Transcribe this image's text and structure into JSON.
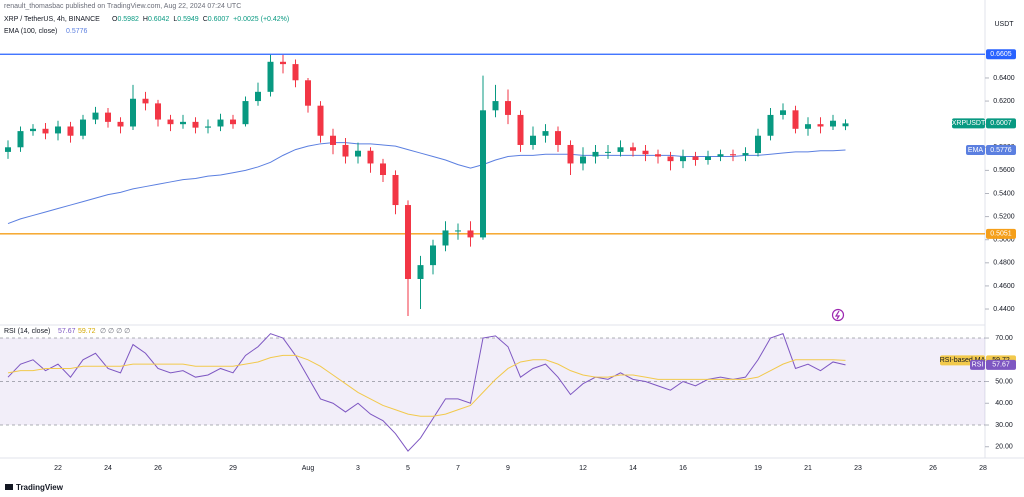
{
  "header": "renault_thomasbac published on TradingView.com, Aug 22, 2024 07:24 UTC",
  "currency": "USDT",
  "brand": "TradingView",
  "chart_data": [
    {
      "type": "candlestick",
      "title": "XRP / TetherUS, 4h, BINANCE",
      "symbol": "XRPUSDT",
      "ohlc_letters": [
        "O",
        "H",
        "L",
        "C"
      ],
      "change": "+0.0025 (+0.42%)",
      "up_color": "#089981",
      "down_color": "#f23645",
      "categories": [
        null,
        null,
        null,
        null,
        "22",
        null,
        null,
        null,
        "24",
        null,
        null,
        null,
        "26",
        null,
        null,
        null,
        null,
        null,
        "29",
        null,
        null,
        null,
        null,
        null,
        "Aug",
        null,
        null,
        null,
        "3",
        null,
        null,
        null,
        "5",
        null,
        null,
        null,
        "7",
        null,
        null,
        null,
        "9",
        null,
        null,
        null,
        null,
        null,
        "12",
        null,
        null,
        null,
        "14",
        null,
        null,
        null,
        "16",
        null,
        null,
        null,
        null,
        null,
        "19",
        null,
        null,
        null,
        "21",
        null,
        null,
        null,
        "23",
        null,
        null,
        null,
        null,
        null,
        "26",
        null,
        null,
        null,
        "28"
      ],
      "open": [
        0.576,
        0.58,
        0.594,
        0.596,
        0.592,
        0.598,
        0.59,
        0.604,
        0.61,
        0.602,
        0.598,
        0.622,
        0.618,
        0.604,
        0.6,
        0.602,
        0.597,
        0.598,
        0.604,
        0.6,
        0.62,
        0.628,
        0.654,
        0.652,
        0.638,
        0.616,
        0.59,
        0.582,
        0.572,
        0.577,
        0.566,
        0.556,
        0.53,
        0.466,
        0.478,
        0.495,
        0.508,
        0.508,
        0.502,
        0.612,
        0.62,
        0.608,
        0.582,
        0.59,
        0.594,
        0.582,
        0.566,
        0.572,
        0.576,
        0.576,
        0.58,
        0.577,
        0.574,
        0.572,
        0.568,
        0.572,
        0.569,
        0.572,
        0.574,
        0.573,
        0.575,
        0.59,
        0.608,
        0.612,
        0.596,
        0.6,
        0.598,
        0.5982,
        null,
        null,
        null,
        null,
        null,
        null,
        null,
        null,
        null,
        null,
        null
      ],
      "high": [
        0.586,
        0.598,
        0.6,
        0.601,
        0.603,
        0.602,
        0.608,
        0.615,
        0.614,
        0.606,
        0.634,
        0.628,
        0.621,
        0.608,
        0.608,
        0.606,
        0.604,
        0.609,
        0.608,
        0.624,
        0.636,
        0.66,
        0.66,
        0.656,
        0.64,
        0.62,
        0.596,
        0.588,
        0.584,
        0.58,
        0.57,
        0.56,
        0.534,
        0.486,
        0.5,
        0.516,
        0.514,
        0.516,
        0.642,
        0.634,
        0.63,
        0.612,
        0.598,
        0.6,
        0.598,
        0.586,
        0.58,
        0.582,
        0.582,
        0.586,
        0.584,
        0.582,
        0.578,
        0.576,
        0.578,
        0.576,
        0.577,
        0.578,
        0.578,
        0.58,
        0.596,
        0.614,
        0.618,
        0.616,
        0.606,
        0.606,
        0.608,
        0.6042,
        null,
        null,
        null,
        null,
        null,
        null,
        null,
        null,
        null,
        null,
        null
      ],
      "low": [
        0.57,
        0.576,
        0.59,
        0.587,
        0.586,
        0.584,
        0.587,
        0.6,
        0.597,
        0.592,
        0.595,
        0.612,
        0.598,
        0.594,
        0.596,
        0.592,
        0.592,
        0.594,
        0.596,
        0.598,
        0.616,
        0.624,
        0.644,
        0.632,
        0.61,
        0.584,
        0.574,
        0.566,
        0.566,
        0.558,
        0.55,
        0.522,
        0.434,
        0.44,
        0.47,
        0.49,
        0.5,
        0.494,
        0.5,
        0.606,
        0.6,
        0.576,
        0.578,
        0.584,
        0.576,
        0.556,
        0.56,
        0.566,
        0.57,
        0.572,
        0.572,
        0.568,
        0.566,
        0.56,
        0.562,
        0.564,
        0.565,
        0.568,
        0.568,
        0.568,
        0.572,
        0.586,
        0.604,
        0.592,
        0.59,
        0.592,
        0.595,
        0.5949,
        null,
        null,
        null,
        null,
        null,
        null,
        null,
        null,
        null,
        null,
        null
      ],
      "close": [
        0.58,
        0.594,
        0.596,
        0.592,
        0.598,
        0.59,
        0.604,
        0.61,
        0.602,
        0.598,
        0.622,
        0.618,
        0.604,
        0.6,
        0.602,
        0.597,
        0.598,
        0.604,
        0.6,
        0.62,
        0.628,
        0.654,
        0.652,
        0.638,
        0.616,
        0.59,
        0.582,
        0.572,
        0.577,
        0.566,
        0.556,
        0.53,
        0.466,
        0.478,
        0.495,
        0.508,
        0.508,
        0.502,
        0.612,
        0.62,
        0.608,
        0.582,
        0.59,
        0.594,
        0.582,
        0.566,
        0.572,
        0.576,
        0.576,
        0.58,
        0.577,
        0.574,
        0.572,
        0.568,
        0.572,
        0.569,
        0.572,
        0.574,
        0.573,
        0.575,
        0.59,
        0.608,
        0.612,
        0.596,
        0.6,
        0.598,
        0.603,
        0.6007,
        null,
        null,
        null,
        null,
        null,
        null,
        null,
        null,
        null,
        null,
        null
      ],
      "series": [
        {
          "name": "EMA",
          "title": "EMA (100, close)",
          "color": "#5b7fe0",
          "values": [
            0.514,
            0.518,
            0.521,
            0.524,
            0.527,
            0.53,
            0.533,
            0.536,
            0.539,
            0.541,
            0.544,
            0.546,
            0.548,
            0.55,
            0.552,
            0.553,
            0.555,
            0.556,
            0.558,
            0.56,
            0.563,
            0.567,
            0.573,
            0.578,
            0.581,
            0.583,
            0.584,
            0.584,
            0.583,
            0.583,
            0.582,
            0.581,
            0.578,
            0.575,
            0.572,
            0.569,
            0.565,
            0.562,
            0.565,
            0.569,
            0.572,
            0.573,
            0.573,
            0.574,
            0.574,
            0.574,
            0.573,
            0.573,
            0.573,
            0.573,
            0.573,
            0.573,
            0.573,
            0.573,
            0.572,
            0.572,
            0.572,
            0.572,
            0.572,
            0.573,
            0.573,
            0.574,
            0.575,
            0.576,
            0.576,
            0.577,
            0.577,
            0.5776,
            null,
            null,
            null,
            null,
            null,
            null,
            null,
            null,
            null,
            null,
            null
          ]
        }
      ],
      "hlines": [
        {
          "value": 0.6605,
          "color": "#2962ff"
        },
        {
          "value": 0.5051,
          "color": "#f59f1a"
        }
      ],
      "ylim": [
        0.4305,
        0.6945
      ],
      "yticks": [
        {
          "value": 0.44,
          "label": "0.4400"
        },
        {
          "value": 0.46,
          "label": "0.4600"
        },
        {
          "value": 0.48,
          "label": "0.4800"
        },
        {
          "value": 0.5,
          "label": "0.5000"
        },
        {
          "value": 0.52,
          "label": "0.5200"
        },
        {
          "value": 0.54,
          "label": "0.5400"
        },
        {
          "value": 0.56,
          "label": "0.5600"
        },
        {
          "value": 0.58,
          "label": "0.5800"
        },
        {
          "value": 0.6,
          "label": "0.6000"
        },
        {
          "value": 0.62,
          "label": "0.6200"
        },
        {
          "value": 0.64,
          "label": "0.6400"
        }
      ],
      "grid": false
    },
    {
      "type": "line",
      "title": "RSI (14, close)",
      "extra": "∅ ∅ ∅ ∅",
      "band_color": "#7e57c2",
      "levels": [
        70,
        50,
        30
      ],
      "series": [
        {
          "name": "RSI",
          "color": "#7e57c2",
          "values": [
            52,
            58,
            60,
            55,
            58,
            52,
            60,
            63,
            56,
            54,
            67,
            63,
            56,
            54,
            55,
            52,
            53,
            56,
            54,
            62,
            66,
            72,
            70,
            62,
            52,
            42,
            40,
            36,
            40,
            35,
            32,
            26,
            18,
            24,
            33,
            42,
            42,
            40,
            70,
            71,
            66,
            52,
            56,
            58,
            52,
            44,
            49,
            52,
            51,
            54,
            51,
            50,
            48,
            46,
            50,
            48,
            51,
            52,
            51,
            52,
            60,
            70,
            72,
            56,
            58,
            55,
            59,
            57.67,
            null,
            null,
            null,
            null,
            null,
            null,
            null,
            null,
            null,
            null,
            null
          ]
        },
        {
          "name": "RSI-based MA",
          "color": "#f2c94c",
          "values": [
            54,
            55,
            55,
            56,
            56,
            56,
            57,
            57,
            57,
            57,
            58,
            58,
            58,
            58,
            58,
            57,
            57,
            57,
            57,
            58,
            59,
            61,
            62,
            62,
            60,
            57,
            53,
            49,
            45,
            42,
            39,
            37,
            35,
            34,
            34,
            35,
            37,
            39,
            45,
            51,
            56,
            59,
            60,
            60,
            58,
            55,
            53,
            52,
            52,
            53,
            53,
            52,
            51,
            51,
            51,
            51,
            51,
            51,
            51,
            51,
            52,
            55,
            58,
            60,
            60,
            60,
            60,
            59.72,
            null,
            null,
            null,
            null,
            null,
            null,
            null,
            null,
            null,
            null,
            null
          ]
        }
      ],
      "ylim": [
        16.2,
        73.7
      ],
      "yticks": [
        {
          "value": 20,
          "label": "20.00"
        },
        {
          "value": 30,
          "label": "30.00"
        },
        {
          "value": 40,
          "label": "40.00"
        },
        {
          "value": 50,
          "label": "50.00"
        },
        {
          "value": 60,
          "label": "60.00"
        },
        {
          "value": 70,
          "label": "70.00"
        }
      ]
    }
  ]
}
